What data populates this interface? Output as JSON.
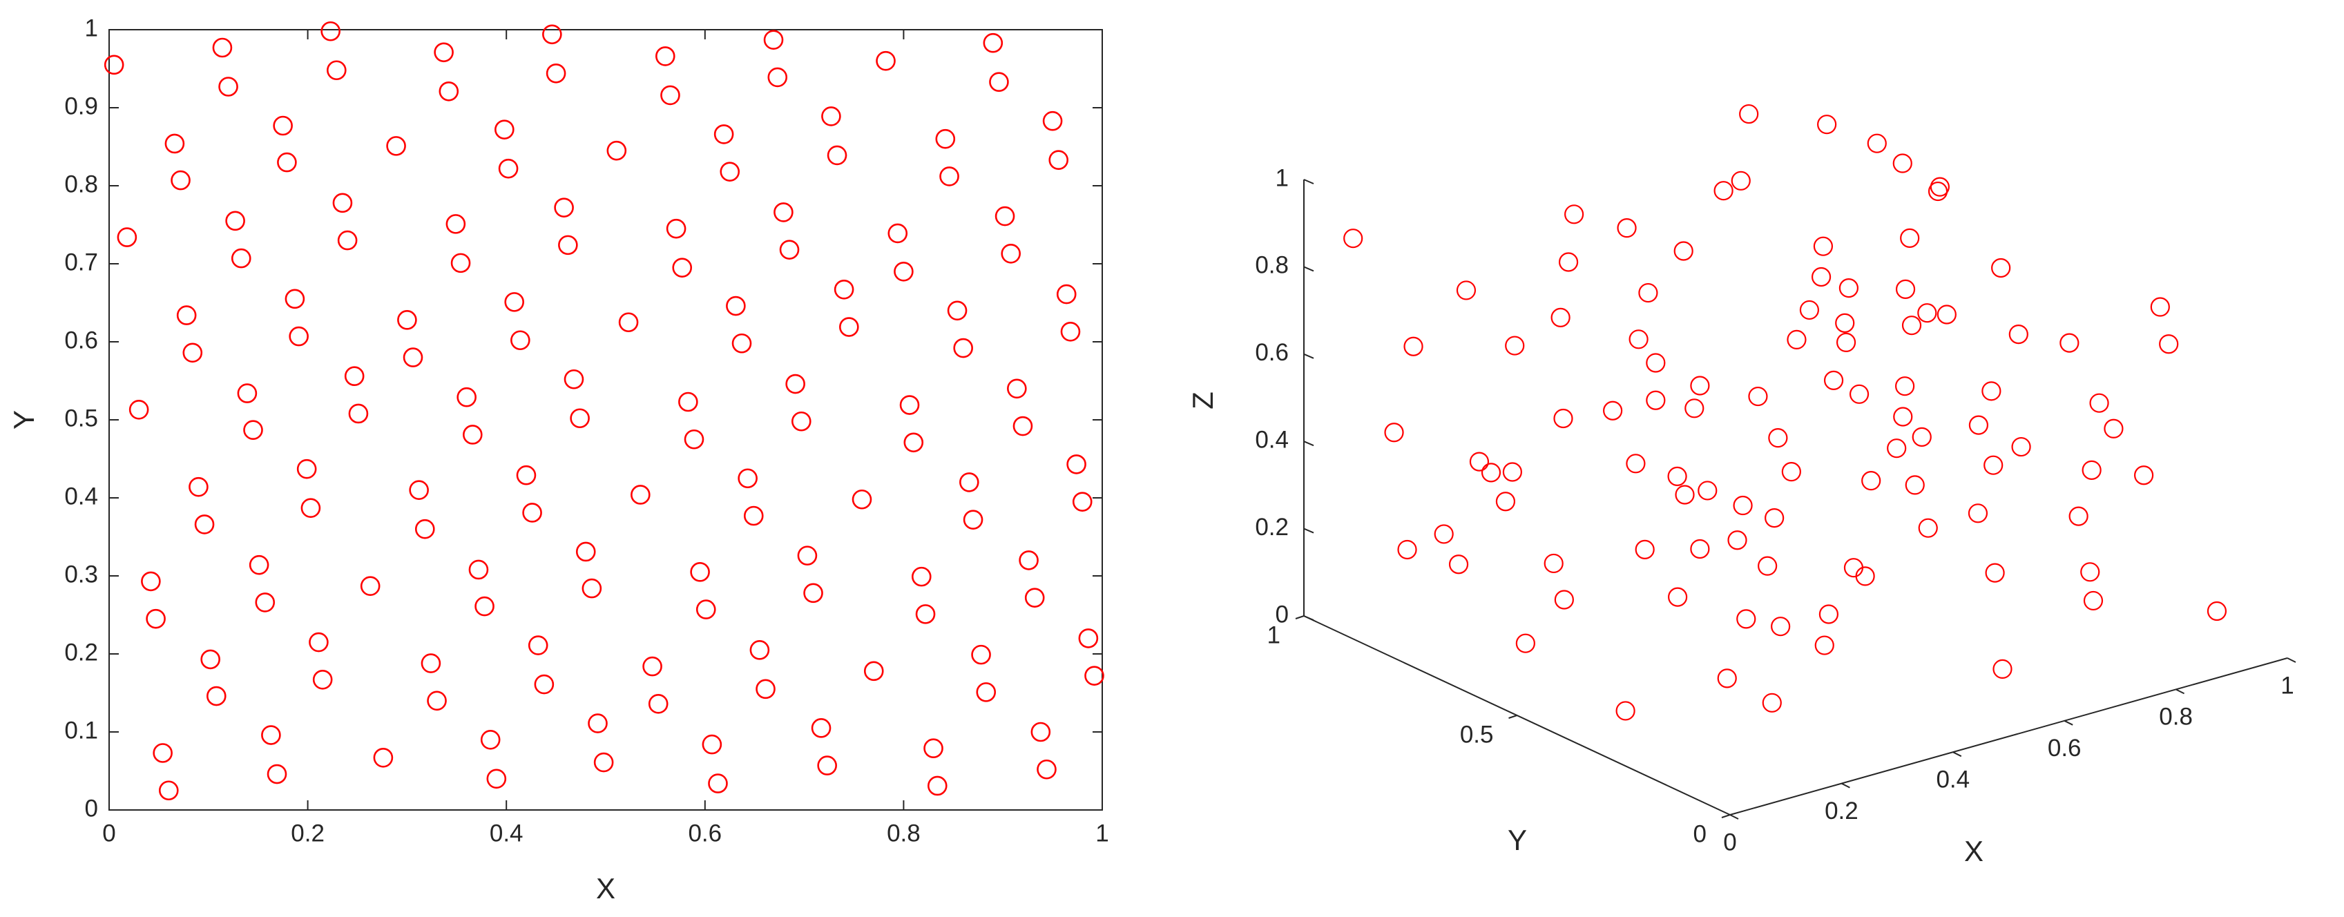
{
  "chart_data": [
    {
      "type": "scatter",
      "xlabel": "X",
      "ylabel": "Y",
      "color": "#ff0000",
      "xlim": [
        0,
        1
      ],
      "ylim": [
        0,
        1
      ],
      "xticks": [
        0,
        0.2,
        0.4,
        0.6,
        0.8,
        1
      ],
      "yticks": [
        0,
        0.1,
        0.2,
        0.3,
        0.4,
        0.5,
        0.6,
        0.7,
        0.8,
        0.9,
        1
      ],
      "x": [
        0.005,
        0.018,
        0.03,
        0.114,
        0.12,
        0.223,
        0.229,
        0.337,
        0.342,
        0.446,
        0.45,
        0.56,
        0.565,
        0.669,
        0.673,
        0.782,
        0.89,
        0.896,
        0.95,
        0.956,
        0.066,
        0.072,
        0.175,
        0.179,
        0.289,
        0.398,
        0.402,
        0.511,
        0.619,
        0.625,
        0.727,
        0.733,
        0.842,
        0.846,
        0.127,
        0.133,
        0.235,
        0.24,
        0.349,
        0.354,
        0.458,
        0.462,
        0.571,
        0.577,
        0.679,
        0.685,
        0.794,
        0.8,
        0.902,
        0.908,
        0.078,
        0.084,
        0.187,
        0.191,
        0.3,
        0.306,
        0.408,
        0.414,
        0.523,
        0.631,
        0.637,
        0.74,
        0.745,
        0.854,
        0.86,
        0.964,
        0.968,
        0.139,
        0.145,
        0.247,
        0.251,
        0.36,
        0.366,
        0.468,
        0.474,
        0.583,
        0.589,
        0.691,
        0.697,
        0.806,
        0.81,
        0.914,
        0.92,
        0.09,
        0.096,
        0.199,
        0.203,
        0.312,
        0.318,
        0.42,
        0.426,
        0.535,
        0.643,
        0.649,
        0.758,
        0.866,
        0.87,
        0.974,
        0.98,
        0.042,
        0.047,
        0.151,
        0.157,
        0.263,
        0.372,
        0.378,
        0.48,
        0.486,
        0.595,
        0.601,
        0.703,
        0.709,
        0.818,
        0.822,
        0.926,
        0.932,
        0.102,
        0.108,
        0.211,
        0.215,
        0.324,
        0.33,
        0.432,
        0.438,
        0.547,
        0.553,
        0.655,
        0.661,
        0.77,
        0.878,
        0.883,
        0.986,
        0.992,
        0.054,
        0.06,
        0.163,
        0.169,
        0.276,
        0.384,
        0.39,
        0.492,
        0.498,
        0.607,
        0.613,
        0.717,
        0.723,
        0.83,
        0.834,
        0.938,
        0.944
      ],
      "y": [
        0.955,
        0.734,
        0.513,
        0.977,
        0.927,
        0.998,
        0.948,
        0.971,
        0.921,
        0.994,
        0.944,
        0.966,
        0.916,
        0.987,
        0.939,
        0.96,
        0.983,
        0.933,
        0.883,
        0.833,
        0.854,
        0.807,
        0.877,
        0.83,
        0.851,
        0.872,
        0.822,
        0.845,
        0.866,
        0.818,
        0.889,
        0.839,
        0.86,
        0.812,
        0.755,
        0.707,
        0.778,
        0.73,
        0.751,
        0.701,
        0.772,
        0.724,
        0.745,
        0.695,
        0.766,
        0.718,
        0.739,
        0.69,
        0.761,
        0.713,
        0.634,
        0.586,
        0.655,
        0.607,
        0.628,
        0.58,
        0.651,
        0.602,
        0.625,
        0.646,
        0.598,
        0.667,
        0.619,
        0.64,
        0.592,
        0.661,
        0.613,
        0.534,
        0.487,
        0.556,
        0.508,
        0.529,
        0.481,
        0.552,
        0.502,
        0.523,
        0.475,
        0.546,
        0.498,
        0.519,
        0.471,
        0.54,
        0.492,
        0.414,
        0.366,
        0.437,
        0.387,
        0.41,
        0.36,
        0.429,
        0.381,
        0.404,
        0.425,
        0.377,
        0.398,
        0.42,
        0.372,
        0.443,
        0.395,
        0.293,
        0.245,
        0.314,
        0.266,
        0.287,
        0.308,
        0.261,
        0.331,
        0.284,
        0.305,
        0.257,
        0.326,
        0.278,
        0.299,
        0.251,
        0.32,
        0.272,
        0.193,
        0.146,
        0.215,
        0.167,
        0.188,
        0.14,
        0.211,
        0.161,
        0.184,
        0.136,
        0.205,
        0.155,
        0.178,
        0.199,
        0.151,
        0.22,
        0.172,
        0.073,
        0.025,
        0.096,
        0.046,
        0.067,
        0.09,
        0.04,
        0.111,
        0.061,
        0.084,
        0.034,
        0.105,
        0.057,
        0.079,
        0.031,
        0.1,
        0.052
      ]
    },
    {
      "type": "scatter3d",
      "xlabel": "X",
      "ylabel": "Y",
      "zlabel": "Z",
      "color": "#ff0000",
      "xlim": [
        0,
        1
      ],
      "ylim": [
        0,
        1
      ],
      "zlim": [
        0,
        1
      ],
      "xticks": [
        0,
        0.2,
        0.4,
        0.6,
        0.8,
        1
      ],
      "yticks": [
        0,
        0.5,
        1
      ],
      "zticks": [
        0,
        0.2,
        0.4,
        0.6,
        0.8,
        1
      ],
      "x": [
        0.05,
        0.12,
        0.2,
        0.28,
        0.35,
        0.42,
        0.5,
        0.58,
        0.65,
        0.72,
        0.8,
        0.88,
        0.95,
        0.03,
        0.1,
        0.18,
        0.25,
        0.32,
        0.4,
        0.47,
        0.55,
        0.62,
        0.7,
        0.77,
        0.85,
        0.92,
        0.08,
        0.15,
        0.22,
        0.3,
        0.37,
        0.45,
        0.52,
        0.6,
        0.67,
        0.75,
        0.82,
        0.9,
        0.97,
        0.02,
        0.09,
        0.17,
        0.24,
        0.31,
        0.39,
        0.46,
        0.54,
        0.61,
        0.69,
        0.76,
        0.84,
        0.91,
        0.98,
        0.06,
        0.13,
        0.21,
        0.29,
        0.36,
        0.44,
        0.51,
        0.59,
        0.66,
        0.74,
        0.81,
        0.89,
        0.96,
        0.04,
        0.11,
        0.19,
        0.26,
        0.34,
        0.41,
        0.49,
        0.56,
        0.64,
        0.71,
        0.79,
        0.86,
        0.94,
        0.07,
        0.14,
        0.23,
        0.33,
        0.43,
        0.53,
        0.63,
        0.73,
        0.83,
        0.93,
        0.16,
        0.27,
        0.48,
        0.57,
        0.68,
        0.78,
        0.87,
        0.38,
        0.58,
        0.99,
        0.01
      ],
      "y": [
        0.95,
        0.9,
        0.85,
        0.78,
        0.7,
        0.62,
        0.55,
        0.48,
        0.4,
        0.32,
        0.25,
        0.18,
        0.1,
        0.6,
        0.52,
        0.45,
        0.38,
        0.3,
        0.22,
        0.15,
        0.08,
        0.92,
        0.85,
        0.78,
        0.7,
        0.62,
        0.35,
        0.28,
        0.2,
        0.12,
        0.05,
        0.98,
        0.88,
        0.8,
        0.72,
        0.65,
        0.58,
        0.5,
        0.42,
        0.15,
        0.08,
        0.98,
        0.68,
        0.58,
        0.48,
        0.38,
        0.28,
        0.18,
        0.05,
        0.95,
        0.88,
        0.78,
        0.7,
        0.75,
        0.65,
        0.55,
        0.45,
        0.85,
        0.75,
        0.65,
        0.35,
        0.25,
        0.15,
        0.05,
        0.95,
        0.85,
        0.45,
        0.25,
        0.15,
        0.05,
        0.95,
        0.35,
        0.25,
        0.62,
        0.52,
        0.42,
        0.35,
        0.28,
        0.2,
        0.88,
        0.82,
        0.92,
        0.2,
        0.1,
        0.45,
        0.68,
        0.55,
        0.45,
        0.35,
        0.72,
        0.88,
        0.82,
        0.72,
        0.62,
        0.12,
        0.65,
        0.62,
        0.98,
        0.95,
        0.02
      ],
      "z": [
        0.87,
        0.62,
        0.35,
        0.12,
        0.9,
        0.55,
        0.25,
        0.78,
        0.45,
        0.15,
        0.68,
        0.38,
        0.08,
        0.5,
        0.22,
        0.82,
        0.48,
        0.18,
        0.72,
        0.42,
        0.1,
        0.65,
        0.32,
        0.95,
        0.58,
        0.28,
        0.05,
        0.75,
        0.4,
        0.92,
        0.6,
        0.3,
        0.02,
        0.85,
        0.52,
        0.2,
        0.88,
        0.55,
        0.25,
        0.7,
        0.38,
        0.1,
        0.98,
        0.66,
        0.35,
        0.05,
        0.8,
        0.5,
        0.22,
        0.9,
        0.6,
        0.3,
        0.02,
        0.28,
        0.05,
        0.6,
        0.3,
        0.75,
        0.45,
        0.15,
        0.95,
        0.62,
        0.35,
        0.85,
        0.48,
        0.18,
        0.92,
        0.58,
        0.12,
        0.45,
        0.52,
        0.85,
        0.55,
        0.38,
        0.08,
        0.7,
        0.4,
        0.12,
        0.65,
        0.45,
        0.15,
        0.7,
        0.25,
        0.95,
        0.6,
        0.25,
        0.98,
        0.75,
        0.45,
        0.4,
        0.22,
        0.65,
        0.92,
        0.6,
        0.55,
        0.82,
        0.08,
        0.15,
        0.75,
        0.3
      ]
    }
  ]
}
